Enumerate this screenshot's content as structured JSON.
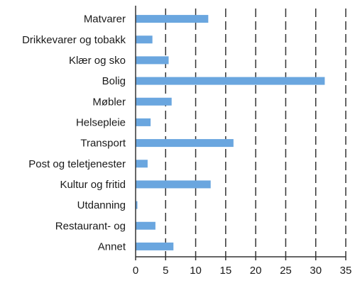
{
  "chart_data": {
    "type": "bar",
    "orientation": "horizontal",
    "categories": [
      "Matvarer",
      "Drikkevarer og tobakk",
      "Klær og sko",
      "Bolig",
      "Møbler",
      "Helsepleie",
      "Transport",
      "Post og teletjenester",
      "Kultur og fritid",
      "Utdanning",
      "Restaurant- og",
      "Annet"
    ],
    "values": [
      12.1,
      2.8,
      5.5,
      31.5,
      6.0,
      2.5,
      16.3,
      2.0,
      12.5,
      0.3,
      3.3,
      6.3
    ],
    "xlim": [
      0,
      35
    ],
    "xticks": [
      0,
      5,
      10,
      15,
      20,
      25,
      30,
      35
    ],
    "grid": true,
    "bar_color": "#6aa6df",
    "title": "",
    "xlabel": "",
    "ylabel": ""
  }
}
